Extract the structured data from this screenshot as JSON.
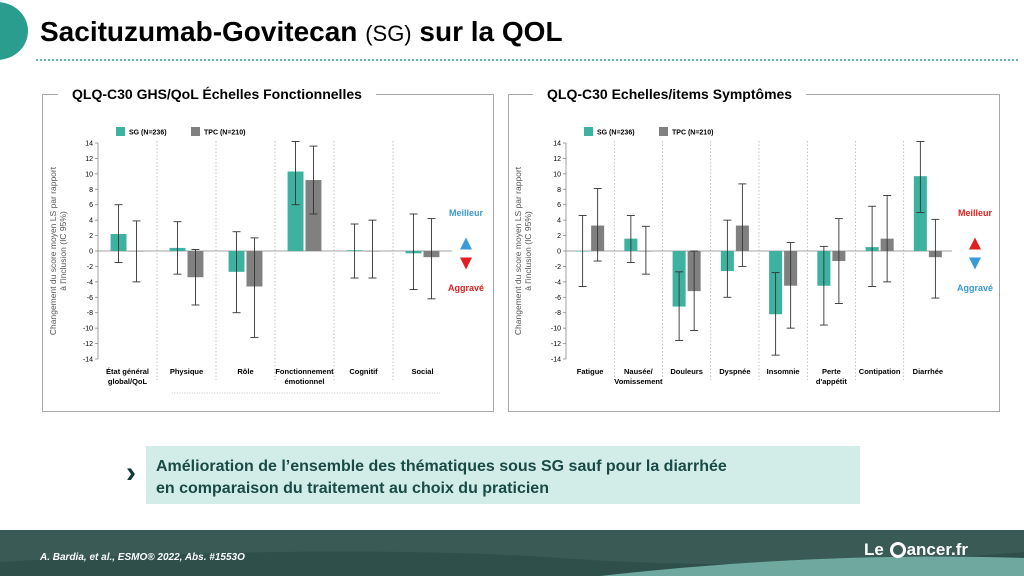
{
  "header": {
    "title_main": "Sacituzumab-Govitecan",
    "title_abbr": "(SG)",
    "title_suffix": "sur la QOL"
  },
  "colors": {
    "sg": "#3db2a0",
    "tpc": "#808080",
    "better": "#3a9ad9",
    "worse": "#e02020"
  },
  "legend": {
    "sg": "SG (N=236)",
    "tpc": "TPC (N=210)"
  },
  "better_label": "Meilleur",
  "worse_label": "Aggravé",
  "chart_data": [
    {
      "type": "bar",
      "title": "QLQ-C30 GHS/QoL Échelles Fonctionnelles",
      "ylabel": "Changement du score moyen LS par rapport à l'inclusion (IC 95%)",
      "ylim": [
        -14,
        14
      ],
      "yticks": [
        14,
        12,
        10,
        8,
        6,
        4,
        2,
        0,
        -2,
        -4,
        -6,
        -8,
        -10,
        -12,
        -14
      ],
      "categories": [
        "État général global/QoL",
        "Physique",
        "Rôle",
        "Fonctionnement émotionnel",
        "Cognitif",
        "Social"
      ],
      "category_lines": [
        [
          "État général",
          "global/QoL"
        ],
        [
          "Physique"
        ],
        [
          "Rôle"
        ],
        [
          "Fonctionnement",
          "émotionnel"
        ],
        [
          "Cognitif"
        ],
        [
          "Social"
        ]
      ],
      "series": [
        {
          "name": "SG (N=236)",
          "values": [
            2.2,
            0.4,
            -2.7,
            10.3,
            0.1,
            -0.3
          ],
          "ci": [
            [
              -1.5,
              6.0
            ],
            [
              -3.0,
              3.8
            ],
            [
              -8.0,
              2.5
            ],
            [
              6.0,
              14.2
            ],
            [
              -3.5,
              3.5
            ],
            [
              -5.0,
              4.8
            ]
          ]
        },
        {
          "name": "TPC (N=210)",
          "values": [
            0.0,
            -3.4,
            -4.6,
            9.2,
            0.0,
            -0.8
          ],
          "ci": [
            [
              -4.0,
              3.9
            ],
            [
              -7.0,
              0.2
            ],
            [
              -11.2,
              1.7
            ],
            [
              4.8,
              13.6
            ],
            [
              -3.5,
              4.0
            ],
            [
              -6.2,
              4.2
            ]
          ]
        }
      ],
      "legend_position": "top-left",
      "grid": false
    },
    {
      "type": "bar",
      "title": "QLQ-C30 Echelles/items Symptômes",
      "ylabel": "Changement du score moyen LS par rapport à l'inclusion (IC 95%)",
      "ylim": [
        -14,
        14
      ],
      "yticks": [
        14,
        12,
        10,
        8,
        6,
        4,
        2,
        0,
        -2,
        -4,
        -6,
        -8,
        -10,
        -12,
        -14
      ],
      "categories": [
        "Fatigue",
        "Nausée/Vomissement",
        "Douleurs",
        "Dyspnée",
        "Insomnie",
        "Perte d'appétit",
        "Contipation",
        "Diarrhée"
      ],
      "category_lines": [
        [
          "Fatigue"
        ],
        [
          "Nausée/",
          "Vomissement"
        ],
        [
          "Douleurs"
        ],
        [
          "Dyspnée"
        ],
        [
          "Insomnie"
        ],
        [
          "Perte",
          "d'appétit"
        ],
        [
          "Contipation"
        ],
        [
          "Diarrhée"
        ]
      ],
      "series": [
        {
          "name": "SG (N=236)",
          "values": [
            0.0,
            1.6,
            -7.2,
            -2.6,
            -8.2,
            -4.5,
            0.5,
            9.7
          ],
          "ci": [
            [
              -4.6,
              4.6
            ],
            [
              -1.5,
              4.6
            ],
            [
              -11.6,
              -2.7
            ],
            [
              -6.0,
              4.0
            ],
            [
              -13.5,
              -2.8
            ],
            [
              -9.6,
              0.6
            ],
            [
              -4.6,
              5.8
            ],
            [
              5.0,
              14.2
            ]
          ]
        },
        {
          "name": "TPC (N=210)",
          "values": [
            3.3,
            0.0,
            -5.2,
            3.3,
            -4.5,
            -1.3,
            1.6,
            -0.8
          ],
          "ci": [
            [
              -1.3,
              8.1
            ],
            [
              -3.0,
              3.2
            ],
            [
              -10.3,
              0.0
            ],
            [
              -2.0,
              8.7
            ],
            [
              -10.0,
              1.1
            ],
            [
              -6.8,
              4.2
            ],
            [
              -4.0,
              7.2
            ],
            [
              -6.1,
              4.1
            ]
          ]
        }
      ],
      "legend_position": "top-left",
      "grid": false
    }
  ],
  "callout": {
    "line1": "Amélioration de l’ensemble des thématiques sous SG sauf pour la diarrhée",
    "line2": "en comparaison du traitement au choix du praticien"
  },
  "footer": {
    "reference": "A. Bardia, et al., ESMO® 2022, Abs. #1553O",
    "logo_pre": "Le",
    "logo_post": "ancer.fr"
  }
}
